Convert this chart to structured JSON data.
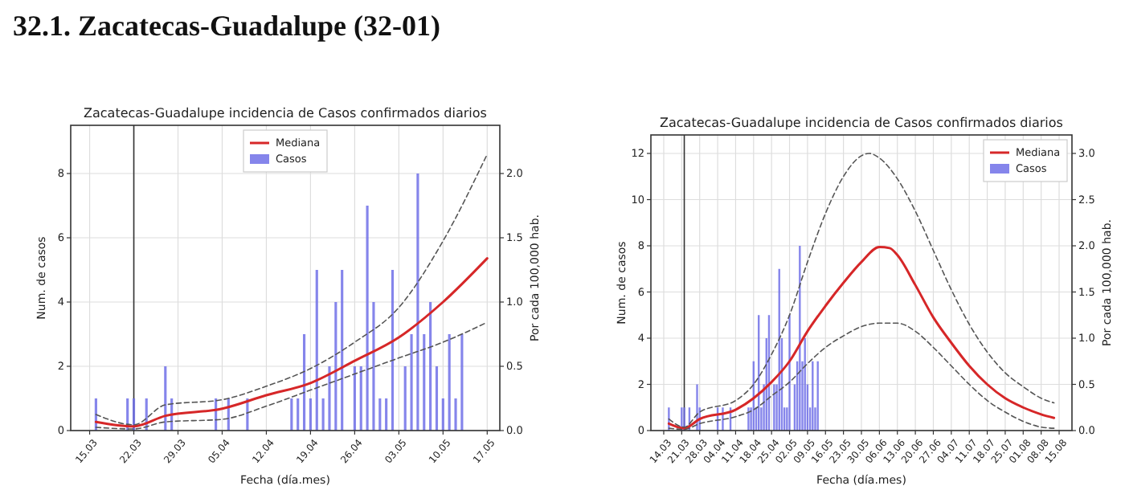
{
  "chart_data": [
    {
      "type": "other",
      "title": "32.1.   Zacatecas-Guadalupe (32-01)"
    },
    {
      "type": "bar",
      "title": "Zacatecas-Guadalupe incidencia de Casos confirmados diarios",
      "xlabel": "Fecha (día.mes)",
      "ylabel": "Num. de casos",
      "y2label": "Por cada 100,000 hab.",
      "xlim": [
        "--03-12",
        "--05-19"
      ],
      "ylim": [
        0,
        9.5
      ],
      "y2lim": [
        0,
        2.375
      ],
      "xticks": [
        {
          "value": "--03-15",
          "label": "15.03"
        },
        {
          "value": "--03-22",
          "label": "22.03"
        },
        {
          "value": "--03-29",
          "label": "29.03"
        },
        {
          "value": "--04-05",
          "label": "05.04"
        },
        {
          "value": "--04-12",
          "label": "12.04"
        },
        {
          "value": "--04-19",
          "label": "19.04"
        },
        {
          "value": "--04-26",
          "label": "26.04"
        },
        {
          "value": "--05-03",
          "label": "03.05"
        },
        {
          "value": "--05-10",
          "label": "10.05"
        },
        {
          "value": "--05-17",
          "label": "17.05"
        }
      ],
      "yticks": [
        0,
        2,
        4,
        6,
        8
      ],
      "y2ticks": [
        {
          "value": 0,
          "label": "0.0"
        },
        {
          "value": 0.5,
          "label": "0.5"
        },
        {
          "value": 1,
          "label": "1.0"
        },
        {
          "value": 1.5,
          "label": "1.5"
        },
        {
          "value": 2,
          "label": "2.0"
        }
      ],
      "grid": true,
      "legend": "top",
      "ref_lines": [
        {
          "axis": "x",
          "value": "--03-22",
          "color": "#333333"
        }
      ],
      "series": [
        {
          "type": "bar",
          "name": "Casos",
          "color": "#7070e8",
          "x": [
            "--03-16",
            "--03-21",
            "--03-22",
            "--03-24",
            "--03-27",
            "--03-28",
            "--04-04",
            "--04-06",
            "--04-09",
            "--04-16",
            "--04-17",
            "--04-18",
            "--04-19",
            "--04-20",
            "--04-21",
            "--04-22",
            "--04-23",
            "--04-24",
            "--04-26",
            "--04-27",
            "--04-28",
            "--04-29",
            "--04-30",
            "--05-01",
            "--05-02",
            "--05-04",
            "--05-05",
            "--05-06",
            "--05-07",
            "--05-08",
            "--05-09",
            "--05-10",
            "--05-11",
            "--05-12",
            "--05-13"
          ],
          "values": [
            1,
            1,
            1,
            1,
            2,
            1,
            1,
            1,
            1,
            1,
            1,
            3,
            1,
            5,
            1,
            2,
            4,
            5,
            2,
            2,
            7,
            4,
            1,
            1,
            5,
            2,
            3,
            8,
            3,
            4,
            2,
            1,
            3,
            1,
            3
          ]
        },
        {
          "type": "line",
          "name": "Mediana",
          "color": "#d62728",
          "x": [
            "--03-16",
            "--03-22",
            "--03-27",
            "--04-05",
            "--04-12",
            "--04-19",
            "--04-26",
            "--05-03",
            "--05-10",
            "--05-17"
          ],
          "values": [
            0.27,
            0.13,
            0.46,
            0.68,
            1.1,
            1.48,
            2.17,
            2.9,
            4.0,
            5.36
          ]
        },
        {
          "type": "line",
          "color": "#555555",
          "line_style": "dashed",
          "x": [
            "--03-16",
            "--03-22",
            "--03-27",
            "--04-05",
            "--04-12",
            "--04-19",
            "--04-26",
            "--05-03",
            "--05-10",
            "--05-17"
          ],
          "values": [
            0.5,
            0.18,
            0.8,
            0.96,
            1.38,
            1.93,
            2.75,
            3.83,
            5.9,
            8.6
          ]
        },
        {
          "type": "line",
          "color": "#555555",
          "line_style": "dashed",
          "x": [
            "--03-16",
            "--03-22",
            "--03-27",
            "--04-05",
            "--04-12",
            "--04-19",
            "--04-26",
            "--05-03",
            "--05-10",
            "--05-17"
          ],
          "values": [
            0.1,
            0.05,
            0.27,
            0.35,
            0.76,
            1.26,
            1.76,
            2.26,
            2.75,
            3.37
          ]
        }
      ]
    },
    {
      "type": "bar",
      "title": "Zacatecas-Guadalupe incidencia de Casos confirmados diarios",
      "xlabel": "Fecha (día.mes)",
      "ylabel": "Num. de casos",
      "y2label": "Por cada 100,000 hab.",
      "xlim": [
        "--03-09",
        "--08-20"
      ],
      "ylim": [
        0,
        12.8
      ],
      "y2lim": [
        0,
        3.2
      ],
      "xticks": [
        {
          "value": "--03-14",
          "label": "14.03"
        },
        {
          "value": "--03-21",
          "label": "21.03"
        },
        {
          "value": "--03-28",
          "label": "28.03"
        },
        {
          "value": "--04-04",
          "label": "04.04"
        },
        {
          "value": "--04-11",
          "label": "11.04"
        },
        {
          "value": "--04-18",
          "label": "18.04"
        },
        {
          "value": "--04-25",
          "label": "25.04"
        },
        {
          "value": "--05-02",
          "label": "02.05"
        },
        {
          "value": "--05-09",
          "label": "09.05"
        },
        {
          "value": "--05-16",
          "label": "16.05"
        },
        {
          "value": "--05-23",
          "label": "23.05"
        },
        {
          "value": "--05-30",
          "label": "30.05"
        },
        {
          "value": "--06-06",
          "label": "06.06"
        },
        {
          "value": "--06-13",
          "label": "13.06"
        },
        {
          "value": "--06-20",
          "label": "20.06"
        },
        {
          "value": "--06-27",
          "label": "27.06"
        },
        {
          "value": "--07-04",
          "label": "04.07"
        },
        {
          "value": "--07-11",
          "label": "11.07"
        },
        {
          "value": "--07-18",
          "label": "18.07"
        },
        {
          "value": "--07-25",
          "label": "25.07"
        },
        {
          "value": "--08-01",
          "label": "01.08"
        },
        {
          "value": "--08-08",
          "label": "08.08"
        },
        {
          "value": "--08-15",
          "label": "15.08"
        }
      ],
      "yticks": [
        0,
        2,
        4,
        6,
        8,
        10,
        12
      ],
      "y2ticks": [
        {
          "value": 0,
          "label": "0.0"
        },
        {
          "value": 0.5,
          "label": "0.5"
        },
        {
          "value": 1,
          "label": "1.0"
        },
        {
          "value": 1.5,
          "label": "1.5"
        },
        {
          "value": 2,
          "label": "2.0"
        },
        {
          "value": 2.5,
          "label": "2.5"
        },
        {
          "value": 3,
          "label": "3.0"
        }
      ],
      "grid": true,
      "legend": "top right",
      "ref_lines": [
        {
          "axis": "x",
          "value": "--03-22",
          "color": "#333333"
        }
      ],
      "series": [
        {
          "type": "bar",
          "name": "Casos",
          "color": "#7070e8",
          "x": [
            "--03-16",
            "--03-21",
            "--03-22",
            "--03-24",
            "--03-27",
            "--03-28",
            "--04-04",
            "--04-06",
            "--04-09",
            "--04-16",
            "--04-17",
            "--04-18",
            "--04-19",
            "--04-20",
            "--04-21",
            "--04-22",
            "--04-23",
            "--04-24",
            "--04-26",
            "--04-27",
            "--04-28",
            "--04-29",
            "--04-30",
            "--05-01",
            "--05-02",
            "--05-04",
            "--05-05",
            "--05-06",
            "--05-07",
            "--05-08",
            "--05-09",
            "--05-10",
            "--05-11",
            "--05-12",
            "--05-13"
          ],
          "values": [
            1,
            1,
            1,
            1,
            2,
            1,
            1,
            1,
            1,
            1,
            1,
            3,
            1,
            5,
            1,
            2,
            4,
            5,
            2,
            2,
            7,
            4,
            1,
            1,
            5,
            2,
            3,
            8,
            3,
            4,
            2,
            1,
            3,
            1,
            3
          ]
        },
        {
          "type": "line",
          "name": "Mediana",
          "color": "#d62728",
          "x": [
            "--03-16",
            "--03-22",
            "--03-28",
            "--04-11",
            "--04-18",
            "--04-25",
            "--05-02",
            "--05-09",
            "--05-16",
            "--05-23",
            "--05-30",
            "--06-06",
            "--06-10",
            "--06-13",
            "--06-20",
            "--06-27",
            "--07-04",
            "--07-11",
            "--07-18",
            "--07-25",
            "--08-01",
            "--08-08",
            "--08-13"
          ],
          "values": [
            0.3,
            0.1,
            0.5,
            0.9,
            1.4,
            2.1,
            3.0,
            4.3,
            5.4,
            6.4,
            7.3,
            7.95,
            7.9,
            7.6,
            6.3,
            4.9,
            3.8,
            2.8,
            2.0,
            1.4,
            1.0,
            0.7,
            0.55
          ]
        },
        {
          "type": "line",
          "color": "#555555",
          "line_style": "dashed",
          "x": [
            "--03-16",
            "--03-22",
            "--03-28",
            "--04-11",
            "--04-18",
            "--04-25",
            "--05-02",
            "--05-09",
            "--05-16",
            "--05-23",
            "--05-30",
            "--06-02",
            "--06-06",
            "--06-13",
            "--06-20",
            "--06-27",
            "--07-04",
            "--07-11",
            "--07-18",
            "--07-25",
            "--08-01",
            "--08-08",
            "--08-13"
          ],
          "values": [
            0.5,
            0.15,
            0.8,
            1.3,
            2.0,
            3.3,
            5.0,
            7.3,
            9.4,
            11.0,
            11.9,
            12.0,
            11.8,
            10.9,
            9.5,
            7.8,
            6.1,
            4.6,
            3.4,
            2.5,
            1.9,
            1.4,
            1.2
          ]
        },
        {
          "type": "line",
          "color": "#555555",
          "line_style": "dashed",
          "x": [
            "--03-16",
            "--03-22",
            "--03-28",
            "--04-11",
            "--04-18",
            "--04-25",
            "--05-02",
            "--05-09",
            "--05-16",
            "--05-23",
            "--05-30",
            "--06-06",
            "--06-13",
            "--06-20",
            "--06-27",
            "--07-04",
            "--07-11",
            "--07-18",
            "--07-25",
            "--08-01",
            "--08-08",
            "--08-13"
          ],
          "values": [
            0.1,
            0.05,
            0.3,
            0.6,
            0.9,
            1.5,
            2.1,
            2.9,
            3.6,
            4.1,
            4.5,
            4.65,
            4.65,
            4.3,
            3.6,
            2.8,
            2.0,
            1.3,
            0.8,
            0.4,
            0.15,
            0.1
          ]
        }
      ]
    }
  ]
}
